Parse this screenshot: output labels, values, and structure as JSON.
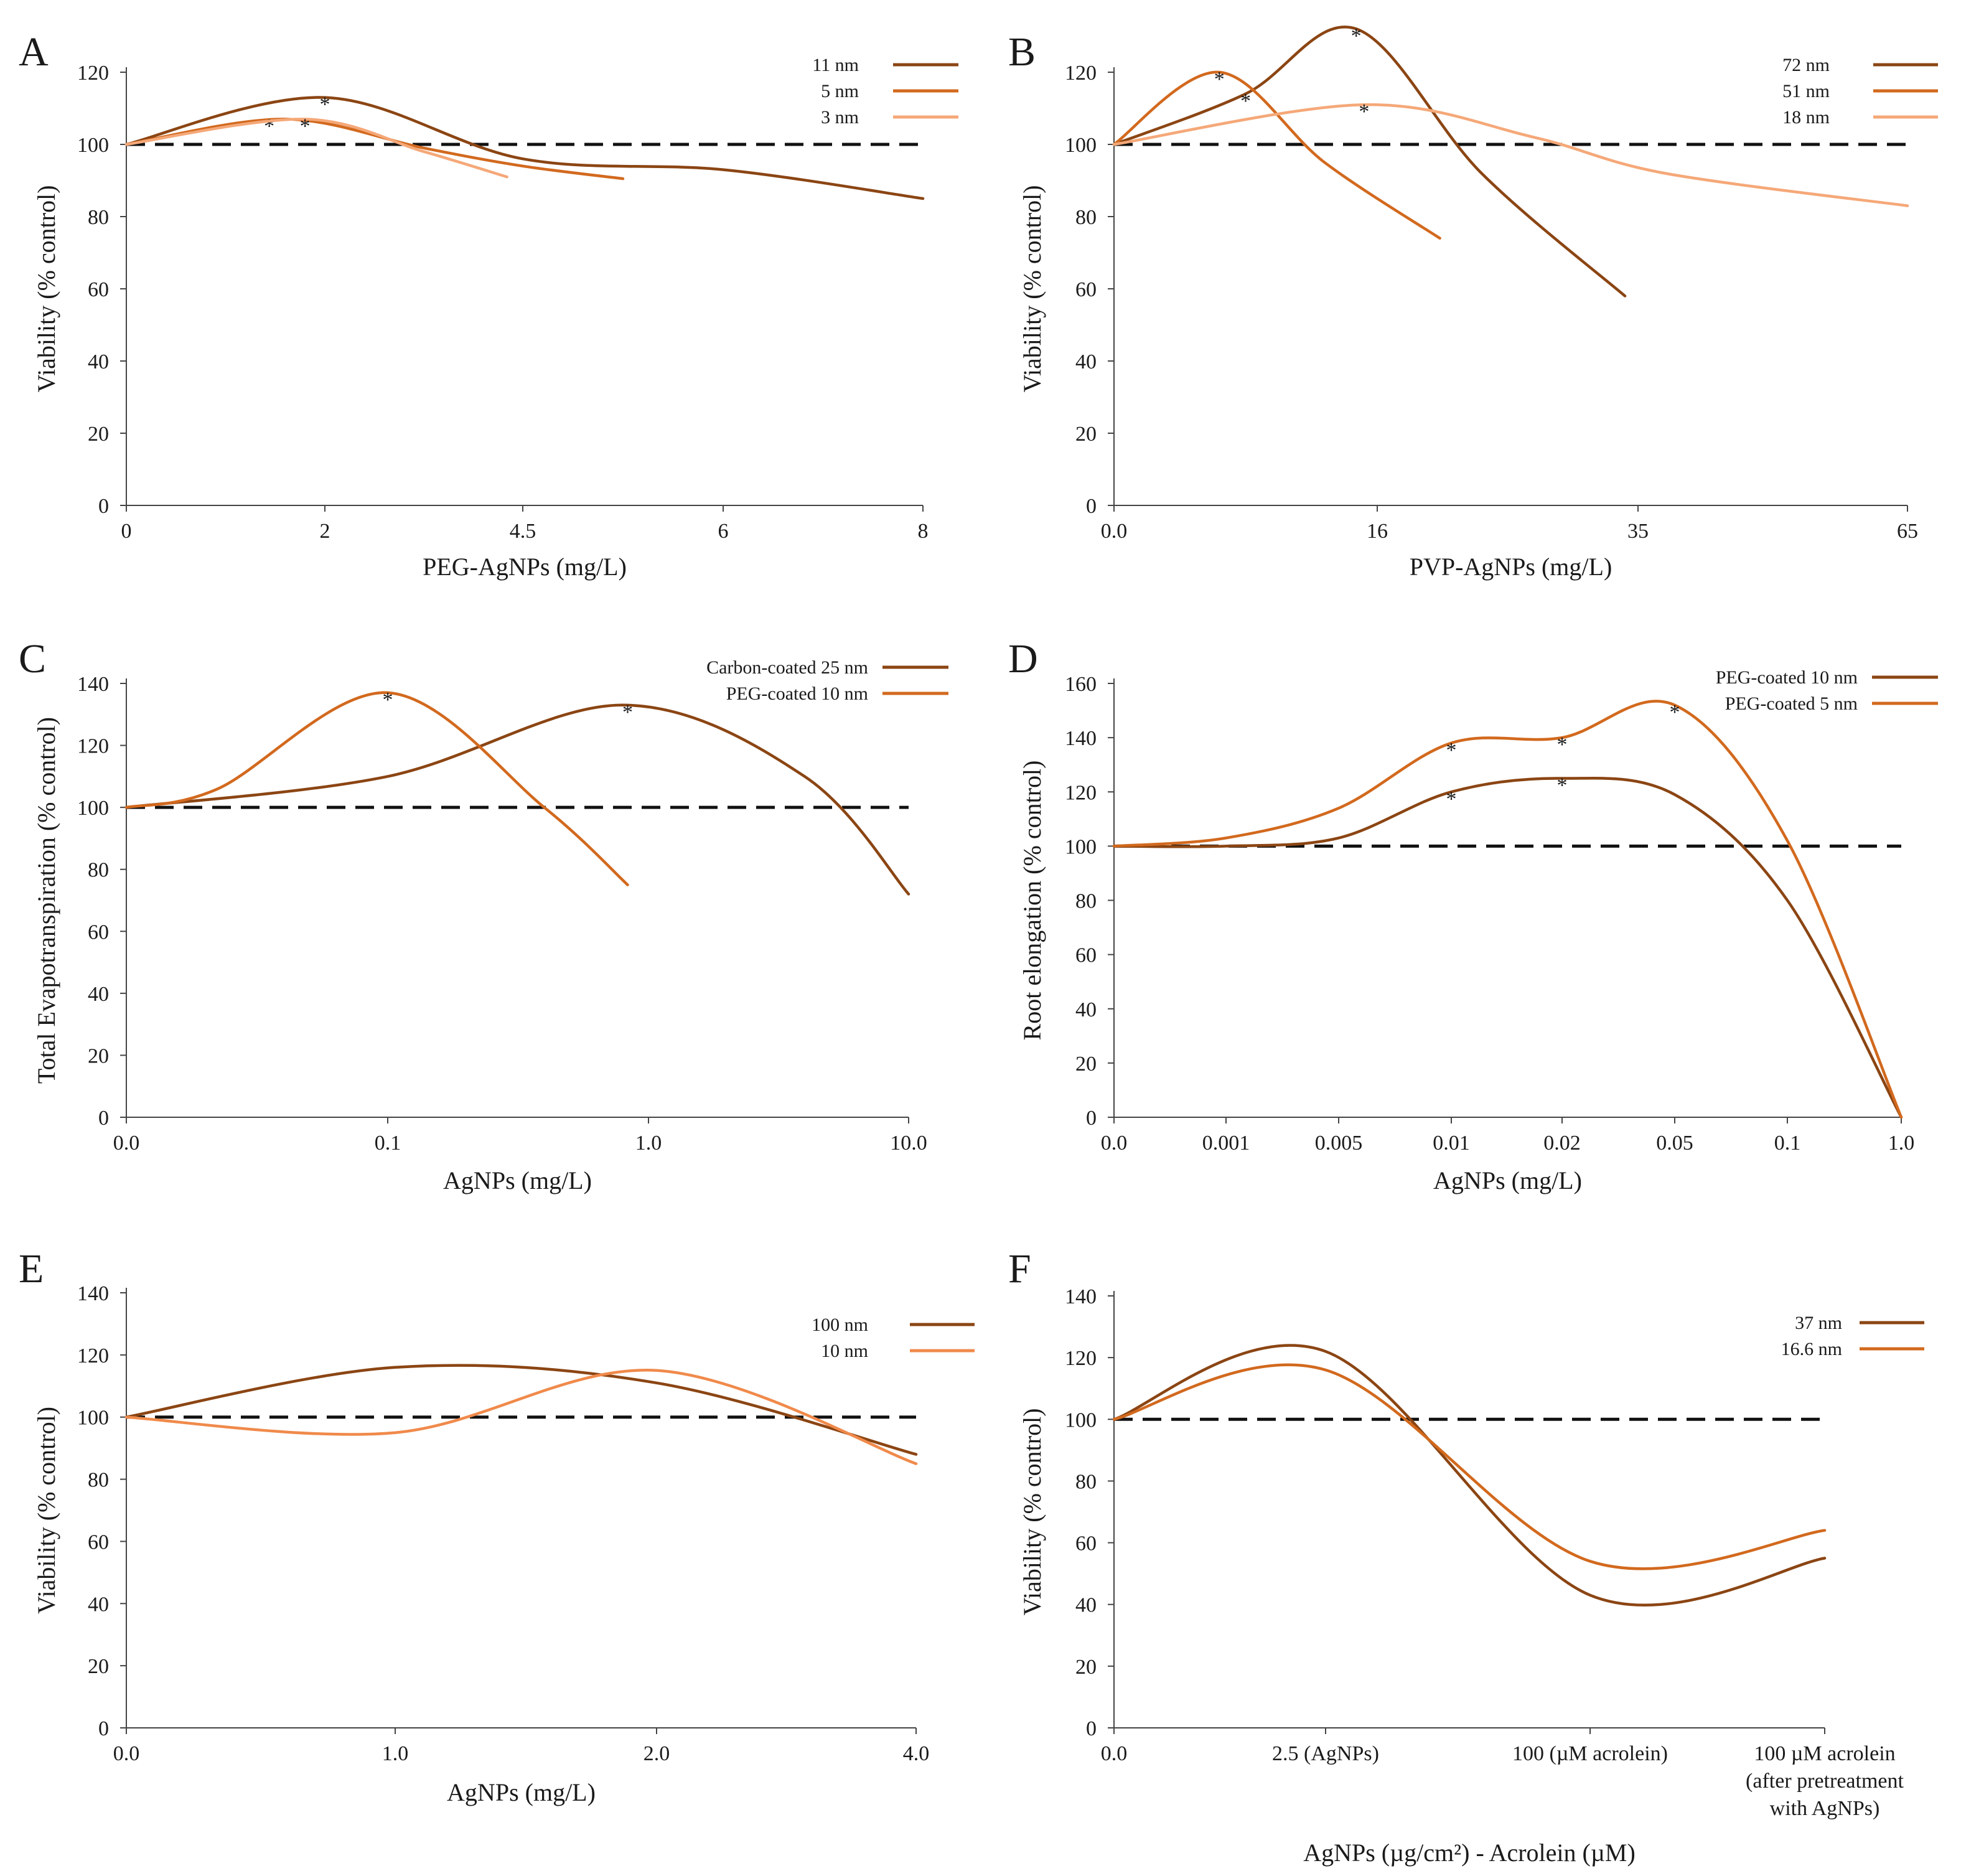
{
  "figure": {
    "description_colors": {
      "dark": "#8b4513",
      "medium": "#d2691e",
      "light": "#f5a878",
      "reference": "#111111"
    }
  },
  "chart_data": [
    {
      "panel": "A",
      "type": "line",
      "xlabel": "PEG-AgNPs (mg/L)",
      "ylabel": "Viability (% control)",
      "categories": [
        "0",
        "2",
        "4.5",
        "6",
        "8"
      ],
      "ylim": [
        0,
        120
      ],
      "yticks": [
        0,
        20,
        40,
        60,
        80,
        100,
        120
      ],
      "reference_line": 100,
      "legend_position": "top-right",
      "series": [
        {
          "name": "11 nm",
          "color": "#8b4513",
          "points": [
            [
              0,
              100
            ],
            [
              1,
              113
            ],
            [
              2,
              96
            ],
            [
              3,
              93
            ],
            [
              4,
              85
            ]
          ],
          "stars": [
            [
              1,
              113
            ]
          ]
        },
        {
          "name": "5 nm",
          "color": "#d2691e",
          "points": [
            [
              0,
              100
            ],
            [
              0.8,
              107
            ],
            [
              1.5,
              99
            ],
            [
              2,
              94
            ],
            [
              2.5,
              90.5
            ]
          ],
          "stars": [
            [
              0.72,
              107
            ]
          ]
        },
        {
          "name": "3 nm",
          "color": "#f5a878",
          "points": [
            [
              0,
              100
            ],
            [
              0.9,
              107
            ],
            [
              1.5,
              98
            ],
            [
              1.92,
              91
            ]
          ],
          "stars": [
            [
              0.9,
              107
            ]
          ]
        }
      ]
    },
    {
      "panel": "B",
      "type": "line",
      "xlabel": "PVP-AgNPs (mg/L)",
      "ylabel": "Viability (% control)",
      "categories": [
        "0.0",
        "16",
        "35",
        "65"
      ],
      "ylim": [
        0,
        120
      ],
      "yticks": [
        0,
        20,
        40,
        60,
        80,
        100,
        120
      ],
      "reference_line": 100,
      "legend_position": "top-right",
      "series": [
        {
          "name": "72 nm",
          "color": "#8b4513",
          "points": [
            [
              0,
              100
            ],
            [
              0.5,
              114
            ],
            [
              0.92,
              132
            ],
            [
              1.4,
              92
            ],
            [
              1.95,
              58
            ]
          ],
          "stars": [
            [
              0.5,
              114
            ],
            [
              0.92,
              132
            ]
          ]
        },
        {
          "name": "51 nm",
          "color": "#d2691e",
          "points": [
            [
              0,
              100
            ],
            [
              0.4,
              120
            ],
            [
              0.8,
              95
            ],
            [
              1.24,
              74
            ]
          ],
          "stars": [
            [
              0.4,
              120
            ]
          ]
        },
        {
          "name": "18 nm",
          "color": "#f5a878",
          "points": [
            [
              0,
              100
            ],
            [
              0.95,
              111
            ],
            [
              1.6,
              102
            ],
            [
              2.1,
              92
            ],
            [
              3,
              83
            ]
          ],
          "stars": [
            [
              0.95,
              111
            ]
          ]
        }
      ]
    },
    {
      "panel": "C",
      "type": "line",
      "xlabel": "AgNPs (mg/L)",
      "ylabel": "Total Evapotranspiration (% control)",
      "categories": [
        "0.0",
        "0.1",
        "1.0",
        "10.0"
      ],
      "ylim": [
        0,
        140
      ],
      "yticks": [
        0,
        20,
        40,
        60,
        80,
        100,
        120,
        140
      ],
      "reference_line": 100,
      "legend_position": "top-right",
      "series": [
        {
          "name": "Carbon-coated 25 nm",
          "color": "#8b4513",
          "points": [
            [
              0,
              100
            ],
            [
              1,
              110
            ],
            [
              1.9,
              133
            ],
            [
              2.6,
              110
            ],
            [
              3,
              72
            ]
          ],
          "stars": [
            [
              1.92,
              133
            ]
          ]
        },
        {
          "name": "PEG-coated 10 nm",
          "color": "#d2691e",
          "points": [
            [
              0,
              100
            ],
            [
              0.35,
              106
            ],
            [
              1,
              137
            ],
            [
              1.6,
              100
            ],
            [
              1.92,
              75
            ]
          ],
          "stars": [
            [
              1,
              137
            ]
          ]
        }
      ]
    },
    {
      "panel": "D",
      "type": "line",
      "xlabel": "AgNPs (mg/L)",
      "ylabel": "Root elongation (% control)",
      "categories": [
        "0.0",
        "0.001",
        "0.005",
        "0.01",
        "0.02",
        "0.05",
        "0.1",
        "1.0"
      ],
      "ylim": [
        0,
        160
      ],
      "yticks": [
        0,
        20,
        40,
        60,
        80,
        100,
        120,
        140,
        160
      ],
      "reference_line": 100,
      "legend_position": "top-right",
      "series": [
        {
          "name": "PEG-coated 10 nm",
          "color": "#8b4513",
          "points": [
            [
              0,
              100
            ],
            [
              1,
              100
            ],
            [
              2,
              103
            ],
            [
              3,
              120
            ],
            [
              4,
              125
            ],
            [
              5,
              119
            ],
            [
              6,
              80
            ],
            [
              7,
              0
            ]
          ],
          "stars": [
            [
              3,
              120
            ],
            [
              4,
              125
            ]
          ]
        },
        {
          "name": "PEG-coated 5 nm",
          "color": "#d2691e",
          "points": [
            [
              0,
              100
            ],
            [
              1,
              103
            ],
            [
              2,
              114
            ],
            [
              3,
              138
            ],
            [
              4,
              140
            ],
            [
              5,
              152
            ],
            [
              6,
              102
            ],
            [
              7,
              0
            ]
          ],
          "stars": [
            [
              3,
              138
            ],
            [
              4,
              140
            ],
            [
              5,
              152
            ]
          ]
        }
      ]
    },
    {
      "panel": "E",
      "type": "line",
      "xlabel": "AgNPs (mg/L)",
      "ylabel": "Viability (% control)",
      "categories": [
        "0.0",
        "1.0",
        "2.0",
        "4.0"
      ],
      "ylim": [
        0,
        140
      ],
      "yticks": [
        0,
        20,
        40,
        60,
        80,
        100,
        120,
        140
      ],
      "reference_line": 100,
      "legend_position": "top-right",
      "series": [
        {
          "name": "100 nm",
          "color": "#8b4513",
          "points": [
            [
              0,
              100
            ],
            [
              1,
              116
            ],
            [
              2,
              111
            ],
            [
              3,
              88
            ]
          ],
          "stars": []
        },
        {
          "name": "10 nm",
          "color": "#f08a4b",
          "points": [
            [
              0,
              100
            ],
            [
              1,
              95
            ],
            [
              2,
              115
            ],
            [
              3,
              85
            ]
          ],
          "stars": []
        }
      ]
    },
    {
      "panel": "F",
      "type": "line",
      "xlabel": "AgNPs (µg/cm²) - Acrolein (µM)",
      "ylabel": "Viability (% control)",
      "categories": [
        "0.0",
        "2.5 (AgNPs)",
        "100 (µM acrolein)",
        "100 µM acrolein (after pretreatment with AgNPs)"
      ],
      "ylim": [
        0,
        140
      ],
      "yticks": [
        0,
        20,
        40,
        60,
        80,
        100,
        120,
        140
      ],
      "reference_line": 100,
      "legend_position": "top-right",
      "series": [
        {
          "name": "37 nm",
          "color": "#8b4513",
          "points": [
            [
              0,
              100
            ],
            [
              1,
              122
            ],
            [
              2,
              43
            ],
            [
              3,
              55
            ]
          ],
          "stars": []
        },
        {
          "name": "16.6 nm",
          "color": "#d2691e",
          "points": [
            [
              0,
              100
            ],
            [
              1,
              116
            ],
            [
              2,
              54
            ],
            [
              3,
              64
            ]
          ],
          "stars": []
        }
      ]
    }
  ]
}
